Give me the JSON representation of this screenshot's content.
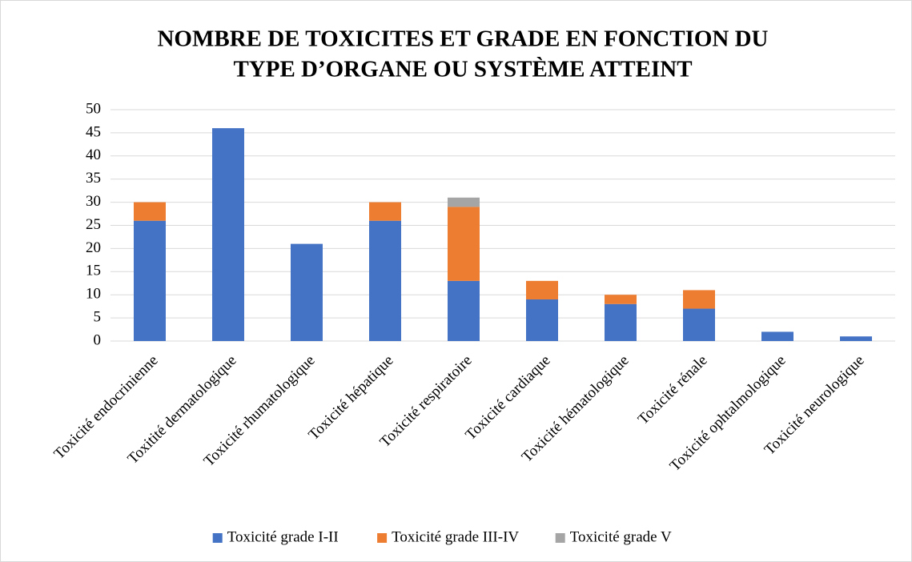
{
  "chart_data": {
    "type": "stacked_bar",
    "title": [
      "NOMBRE DE TOXICITES ET GRADE EN FONCTION DU",
      "TYPE D’ORGANE OU SYSTÈME ATTEINT"
    ],
    "categories": [
      "Toxicité endocrinienne",
      "Toxitité dermatologique",
      "Toxicité rhumatologique",
      "Toxicité hépatique",
      "Toxicité respiratoire",
      "Toxicité cardiaque",
      "Toxicité hématologique",
      "Toxicité rénale",
      "Toxicité ophtalmologique",
      "Toxicité neurologique"
    ],
    "series": [
      {
        "name": "Toxicité grade I-II",
        "color": "#4472c4",
        "values": [
          26,
          46,
          21,
          26,
          13,
          9,
          8,
          7,
          2,
          1
        ]
      },
      {
        "name": "Toxicité grade III-IV",
        "color": "#ed7d31",
        "values": [
          4,
          0,
          0,
          4,
          16,
          4,
          2,
          4,
          0,
          0
        ]
      },
      {
        "name": "Toxicité grade V",
        "color": "#a5a5a5",
        "values": [
          0,
          0,
          0,
          0,
          2,
          0,
          0,
          0,
          0,
          0
        ]
      }
    ],
    "ylim": [
      0,
      50
    ],
    "yticks": [
      0,
      5,
      10,
      15,
      20,
      25,
      30,
      35,
      40,
      45,
      50
    ],
    "grid": true,
    "legend": "bottom"
  }
}
